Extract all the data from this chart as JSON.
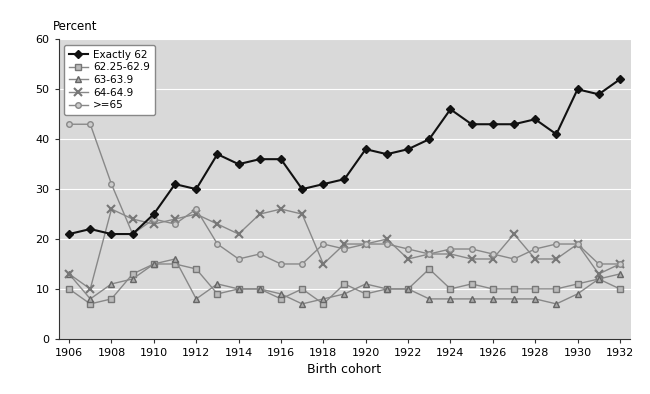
{
  "x": [
    1906,
    1907,
    1908,
    1909,
    1910,
    1911,
    1912,
    1913,
    1914,
    1915,
    1916,
    1917,
    1918,
    1919,
    1920,
    1921,
    1922,
    1923,
    1924,
    1925,
    1926,
    1927,
    1928,
    1929,
    1930,
    1931,
    1932
  ],
  "exactly62": [
    21,
    22,
    21,
    21,
    25,
    31,
    30,
    37,
    35,
    36,
    36,
    30,
    31,
    32,
    38,
    37,
    38,
    40,
    46,
    43,
    43,
    43,
    44,
    41,
    50,
    49,
    52
  ],
  "s6225_629": [
    10,
    7,
    8,
    13,
    15,
    15,
    14,
    9,
    10,
    10,
    8,
    10,
    7,
    11,
    9,
    10,
    10,
    14,
    10,
    11,
    10,
    10,
    10,
    10,
    11,
    12,
    10
  ],
  "s63_639": [
    13,
    8,
    11,
    12,
    15,
    16,
    8,
    11,
    10,
    10,
    9,
    7,
    8,
    9,
    11,
    10,
    10,
    8,
    8,
    8,
    8,
    8,
    8,
    7,
    9,
    12,
    13
  ],
  "s64_649": [
    13,
    10,
    26,
    24,
    23,
    24,
    25,
    23,
    21,
    25,
    26,
    25,
    15,
    19,
    19,
    20,
    16,
    17,
    17,
    16,
    16,
    21,
    16,
    16,
    19,
    13,
    15
  ],
  "ge65": [
    43,
    43,
    31,
    21,
    24,
    23,
    26,
    19,
    16,
    17,
    15,
    15,
    19,
    18,
    19,
    19,
    18,
    17,
    18,
    18,
    17,
    16,
    18,
    19,
    19,
    15,
    15
  ],
  "plot_bg_color": "#d9d9d9",
  "fig_bg_color": "#ffffff",
  "ylabel": "Percent",
  "xlabel": "Birth cohort",
  "ylim": [
    0,
    60
  ],
  "xlim": [
    1905.5,
    1932.5
  ],
  "yticks": [
    0,
    10,
    20,
    30,
    40,
    50,
    60
  ],
  "xticks": [
    1906,
    1908,
    1910,
    1912,
    1914,
    1916,
    1918,
    1920,
    1922,
    1924,
    1926,
    1928,
    1930,
    1932
  ],
  "legend_labels": [
    "Exactly 62",
    "62.25-62.9",
    "63-63.9",
    "64-64.9",
    ">=65"
  ],
  "line_colors": [
    "#111111",
    "#888888",
    "#888888",
    "#888888",
    "#888888"
  ],
  "markers": [
    "D",
    "s",
    "^",
    "x",
    "o"
  ],
  "marker_sizes": [
    4,
    4,
    5,
    6,
    4
  ],
  "markerfacecolors": [
    "#111111",
    "#bbbbbb",
    "#aaaaaa",
    "none",
    "#cccccc"
  ],
  "markeredgecolors": [
    "#111111",
    "#777777",
    "#666666",
    "#777777",
    "#888888"
  ]
}
